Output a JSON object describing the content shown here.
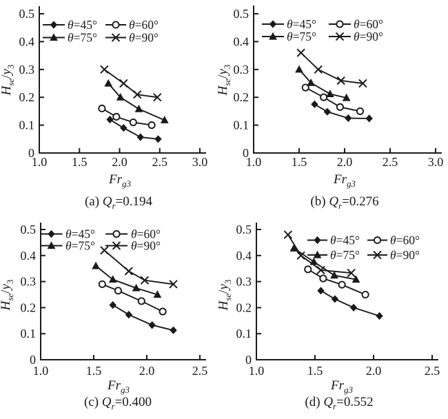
{
  "figure": {
    "background": "#ffffff",
    "ink_color": "#1a1a1a",
    "grid": "off",
    "legend_position": "inside top-left (subplots a,b,c), inside top-center-right (subplot d)"
  },
  "chart_data": [
    {
      "id": "a",
      "type": "line",
      "caption": "(a) Qr=0.194",
      "caption_parts": {
        "prefix": "(a) ",
        "symbol": "Q",
        "symbol_sub": "r",
        "value": "=0.194"
      },
      "xlabel": {
        "main": "Fr",
        "sub": "g3"
      },
      "ylabel": {
        "num": "H",
        "num_sub": "se",
        "slash": "/",
        "den": "y",
        "den_sub": "3"
      },
      "xlim": [
        1.0,
        3.0
      ],
      "ylim": [
        0,
        0.5
      ],
      "xticks": [
        "1.0",
        "1.5",
        "2.0",
        "2.5",
        "3.0"
      ],
      "yticks": [
        "0",
        "0.1",
        "0.2",
        "0.3",
        "0.4",
        "0.5"
      ],
      "series": [
        {
          "name": "θ=45°",
          "marker": "diamond-filled",
          "x": [
            1.88,
            2.05,
            2.26,
            2.48
          ],
          "y": [
            0.12,
            0.09,
            0.057,
            0.05
          ]
        },
        {
          "name": "θ=60°",
          "marker": "circle-open",
          "x": [
            1.78,
            1.96,
            2.17,
            2.4
          ],
          "y": [
            0.16,
            0.13,
            0.11,
            0.1
          ]
        },
        {
          "name": "θ=75°",
          "marker": "triangle-filled",
          "x": [
            1.86,
            2.01,
            2.24,
            2.56
          ],
          "y": [
            0.25,
            0.2,
            0.158,
            0.118
          ]
        },
        {
          "name": "θ=90°",
          "marker": "x-cross",
          "x": [
            1.81,
            2.05,
            2.22,
            2.47
          ],
          "y": [
            0.3,
            0.25,
            0.21,
            0.2
          ]
        }
      ]
    },
    {
      "id": "b",
      "type": "line",
      "caption": "(b) Qr=0.276",
      "caption_parts": {
        "prefix": "(b) ",
        "symbol": "Q",
        "symbol_sub": "r",
        "value": "=0.276"
      },
      "xlabel": {
        "main": "Fr",
        "sub": "g3"
      },
      "ylabel": {
        "num": "H",
        "num_sub": "se",
        "slash": "/",
        "den": "y",
        "den_sub": "3"
      },
      "xlim": [
        1.0,
        3.0
      ],
      "ylim": [
        0,
        0.5
      ],
      "xticks": [
        "1.0",
        "1.5",
        "2.0",
        "2.5",
        "3.0"
      ],
      "yticks": [
        "0",
        "0.1",
        "0.2",
        "0.3",
        "0.4",
        "0.5"
      ],
      "series": [
        {
          "name": "θ=45°",
          "marker": "diamond-filled",
          "x": [
            1.67,
            1.81,
            2.04,
            2.27
          ],
          "y": [
            0.175,
            0.148,
            0.125,
            0.124
          ]
        },
        {
          "name": "θ=60°",
          "marker": "circle-open",
          "x": [
            1.57,
            1.77,
            1.95,
            2.17
          ],
          "y": [
            0.235,
            0.2,
            0.165,
            0.15
          ]
        },
        {
          "name": "θ=75°",
          "marker": "triangle-filled",
          "x": [
            1.5,
            1.63,
            1.84,
            2.02
          ],
          "y": [
            0.3,
            0.252,
            0.212,
            0.198
          ]
        },
        {
          "name": "θ=90°",
          "marker": "x-cross",
          "x": [
            1.52,
            1.71,
            1.96,
            2.2
          ],
          "y": [
            0.36,
            0.3,
            0.26,
            0.25
          ]
        }
      ]
    },
    {
      "id": "c",
      "type": "line",
      "caption": "(c) Qr=0.400",
      "caption_parts": {
        "prefix": "(c) ",
        "symbol": "Q",
        "symbol_sub": "r",
        "value": "=0.400"
      },
      "xlabel": {
        "main": "Fr",
        "sub": "g3"
      },
      "ylabel": {
        "num": "H",
        "num_sub": "se",
        "slash": "/",
        "den": "y",
        "den_sub": "3"
      },
      "xlim": [
        1.0,
        2.5
      ],
      "ylim": [
        0,
        0.5
      ],
      "xticks": [
        "1.0",
        "1.5",
        "2.0",
        "2.5"
      ],
      "yticks": [
        "0",
        "0.1",
        "0.2",
        "0.3",
        "0.4",
        "0.5"
      ],
      "series": [
        {
          "name": "θ=45°",
          "marker": "diamond-filled",
          "x": [
            1.68,
            1.83,
            2.05,
            2.25
          ],
          "y": [
            0.21,
            0.173,
            0.133,
            0.113
          ]
        },
        {
          "name": "θ=60°",
          "marker": "circle-open",
          "x": [
            1.58,
            1.73,
            1.95,
            2.15
          ],
          "y": [
            0.29,
            0.265,
            0.225,
            0.185
          ]
        },
        {
          "name": "θ=75°",
          "marker": "triangle-filled",
          "x": [
            1.52,
            1.68,
            1.9,
            2.1
          ],
          "y": [
            0.36,
            0.308,
            0.275,
            0.25
          ]
        },
        {
          "name": "θ=90°",
          "marker": "x-cross",
          "x": [
            1.6,
            1.83,
            1.98,
            2.25
          ],
          "y": [
            0.42,
            0.34,
            0.305,
            0.29
          ]
        }
      ]
    },
    {
      "id": "d",
      "type": "line",
      "caption": "(d) Qr=0.552",
      "caption_parts": {
        "prefix": "(d) ",
        "symbol": "Q",
        "symbol_sub": "r",
        "value": "=0.552"
      },
      "xlabel": {
        "main": "Fr",
        "sub": "g3"
      },
      "ylabel": {
        "num": "H",
        "num_sub": "se",
        "slash": "/",
        "den": "y",
        "den_sub": "3"
      },
      "xlim": [
        1.0,
        2.5
      ],
      "ylim": [
        0,
        0.5
      ],
      "xticks": [
        "1.0",
        "1.5",
        "2.0",
        "2.5"
      ],
      "yticks": [
        "0",
        "0.1",
        "0.2",
        "0.3",
        "0.4",
        "0.5"
      ],
      "series": [
        {
          "name": "θ=45°",
          "marker": "diamond-filled",
          "x": [
            1.55,
            1.67,
            1.83,
            2.05
          ],
          "y": [
            0.265,
            0.233,
            0.2,
            0.168
          ]
        },
        {
          "name": "θ=60°",
          "marker": "circle-open",
          "x": [
            1.44,
            1.57,
            1.73,
            1.93
          ],
          "y": [
            0.347,
            0.312,
            0.288,
            0.25
          ]
        },
        {
          "name": "θ=75°",
          "marker": "triangle-filled",
          "x": [
            1.32,
            1.49,
            1.665,
            1.85
          ],
          "y": [
            0.428,
            0.376,
            0.324,
            0.308
          ]
        },
        {
          "name": "θ=90°",
          "marker": "x-cross",
          "x": [
            1.27,
            1.38,
            1.55,
            1.81
          ],
          "y": [
            0.48,
            0.4,
            0.344,
            0.333
          ]
        }
      ]
    }
  ]
}
